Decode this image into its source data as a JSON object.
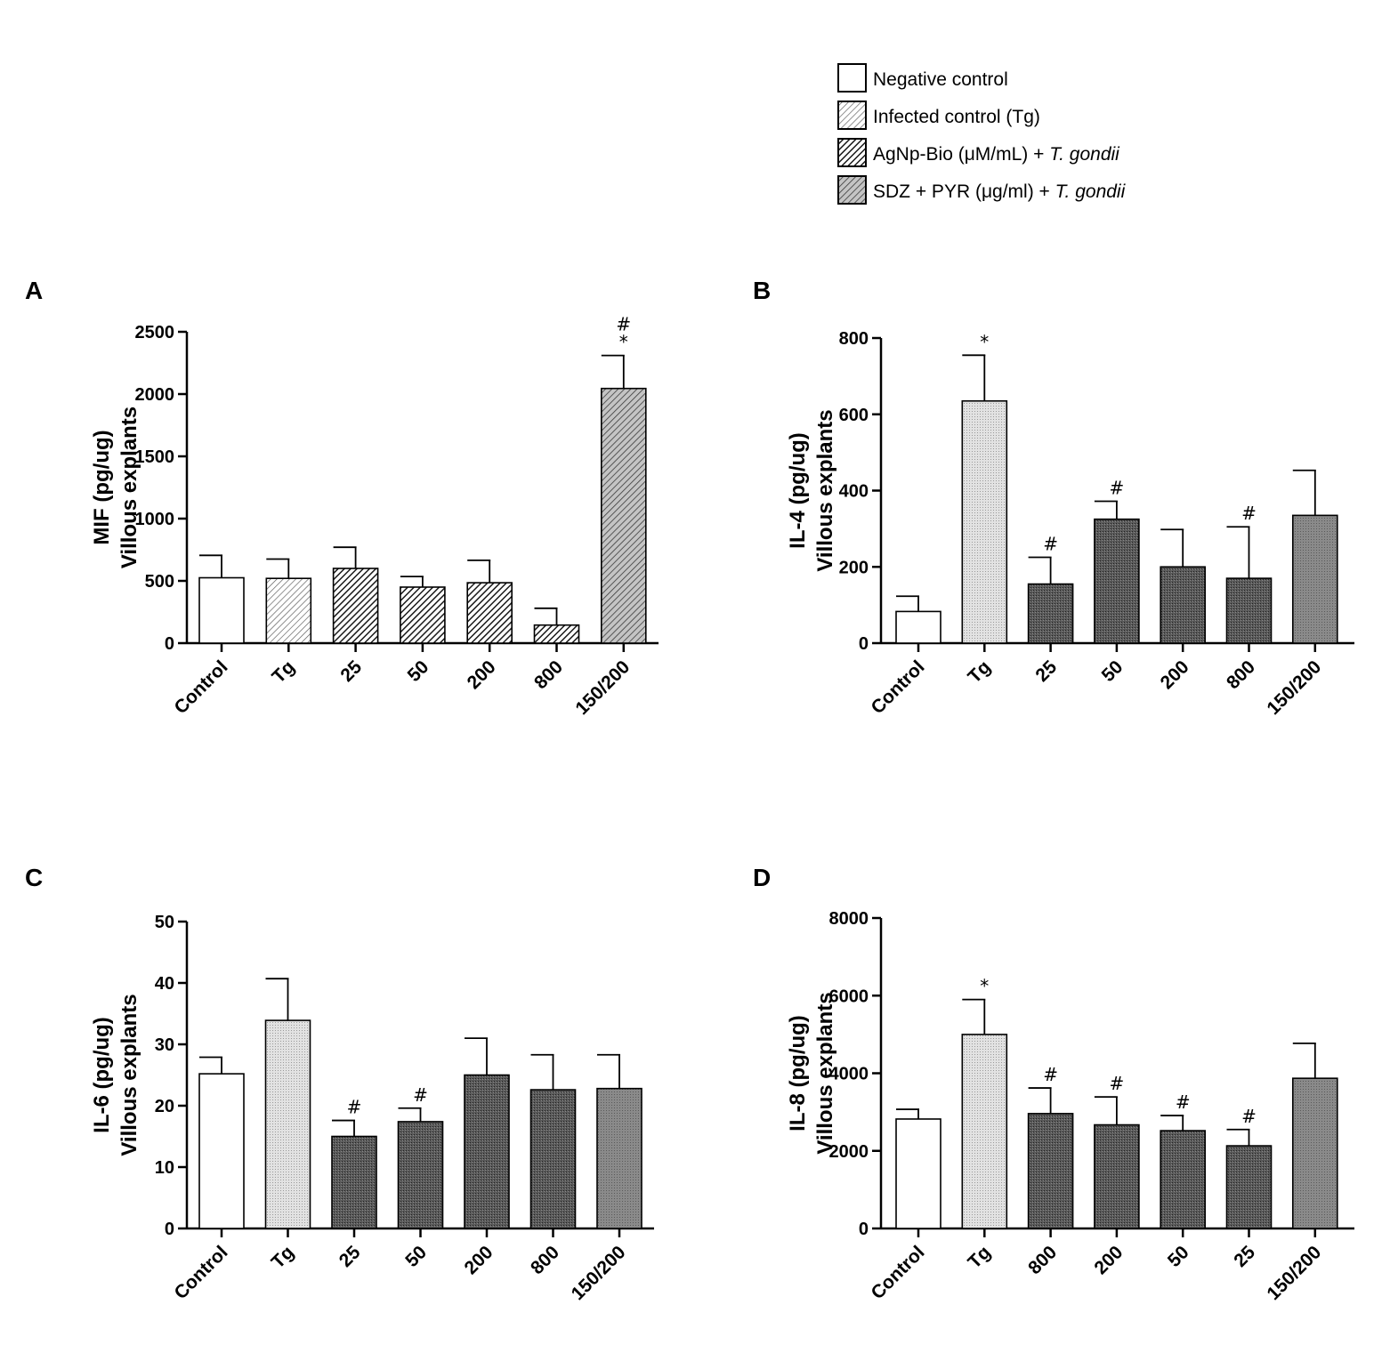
{
  "legend": [
    {
      "key": "neg",
      "text": "Negative control",
      "italic": ""
    },
    {
      "key": "tg",
      "text": "Infected control (Tg)",
      "italic": ""
    },
    {
      "key": "agnp",
      "text": "AgNp-Bio (μM/mL) + ",
      "italic": "T. gondii"
    },
    {
      "key": "sdz",
      "text": "SDZ + PYR  (μg/ml) + ",
      "italic": "T. gondii"
    }
  ],
  "chart_data": [
    {
      "panel": "A",
      "type": "bar",
      "ylabel_line1": "MIF (pg/ug)",
      "ylabel_line2": "Villous explants",
      "ylim": [
        0,
        2500
      ],
      "yticks": [
        0,
        500,
        1000,
        1500,
        2000,
        2500
      ],
      "categories": [
        "Control",
        "Tg",
        "25",
        "50",
        "200",
        "800",
        "150/200"
      ],
      "values": [
        525,
        520,
        600,
        450,
        485,
        145,
        2045
      ],
      "errors": [
        180,
        155,
        170,
        85,
        180,
        135,
        265
      ],
      "fills": [
        "neg",
        "tg",
        "agnp",
        "agnp",
        "agnp",
        "agnp",
        "sdz"
      ],
      "annotations": [
        "",
        "",
        "",
        "",
        "",
        "",
        "#\n*"
      ]
    },
    {
      "panel": "B",
      "type": "bar",
      "ylabel_line1": "IL-4 (pg/ug)",
      "ylabel_line2": "Villous explants",
      "ylim": [
        0,
        800
      ],
      "yticks": [
        0,
        200,
        400,
        600,
        800
      ],
      "categories": [
        "Control",
        "Tg",
        "25",
        "50",
        "200",
        "800",
        "150/200"
      ],
      "values": [
        83,
        635,
        155,
        325,
        200,
        170,
        335
      ],
      "errors": [
        40,
        120,
        70,
        47,
        98,
        135,
        118
      ],
      "fills": [
        "neg",
        "tg",
        "agnp",
        "agnp",
        "agnp",
        "agnp",
        "sdz"
      ],
      "annotations": [
        "",
        "*",
        "#",
        "#",
        "",
        "#",
        ""
      ]
    },
    {
      "panel": "C",
      "type": "bar",
      "ylabel_line1": "IL-6 (pg/ug)",
      "ylabel_line2": "Villous explants",
      "ylim": [
        0,
        50
      ],
      "yticks": [
        0,
        10,
        20,
        30,
        40,
        50
      ],
      "categories": [
        "Control",
        "Tg",
        "25",
        "50",
        "200",
        "800",
        "150/200"
      ],
      "values": [
        25.2,
        33.9,
        15.0,
        17.4,
        25.0,
        22.6,
        22.8
      ],
      "errors": [
        2.7,
        6.8,
        2.6,
        2.2,
        6.0,
        5.7,
        5.5
      ],
      "fills": [
        "neg",
        "tg",
        "agnp",
        "agnp",
        "agnp",
        "agnp",
        "sdz"
      ],
      "annotations": [
        "",
        "",
        "#",
        "#",
        "",
        "",
        ""
      ]
    },
    {
      "panel": "D",
      "type": "bar",
      "ylabel_line1": "IL-8 (pg/ug)",
      "ylabel_line2": "Villous explants",
      "ylim": [
        0,
        8000
      ],
      "yticks": [
        0,
        2000,
        4000,
        6000,
        8000
      ],
      "categories": [
        "Control",
        "Tg",
        "800",
        "200",
        "50",
        "25",
        "150/200"
      ],
      "values": [
        2820,
        5000,
        2960,
        2670,
        2520,
        2130,
        3870
      ],
      "errors": [
        250,
        900,
        660,
        720,
        390,
        420,
        900
      ],
      "fills": [
        "neg",
        "tg",
        "agnp",
        "agnp",
        "agnp",
        "agnp",
        "sdz"
      ],
      "annotations": [
        "",
        "*",
        "#",
        "#",
        "#",
        "#",
        ""
      ]
    }
  ]
}
